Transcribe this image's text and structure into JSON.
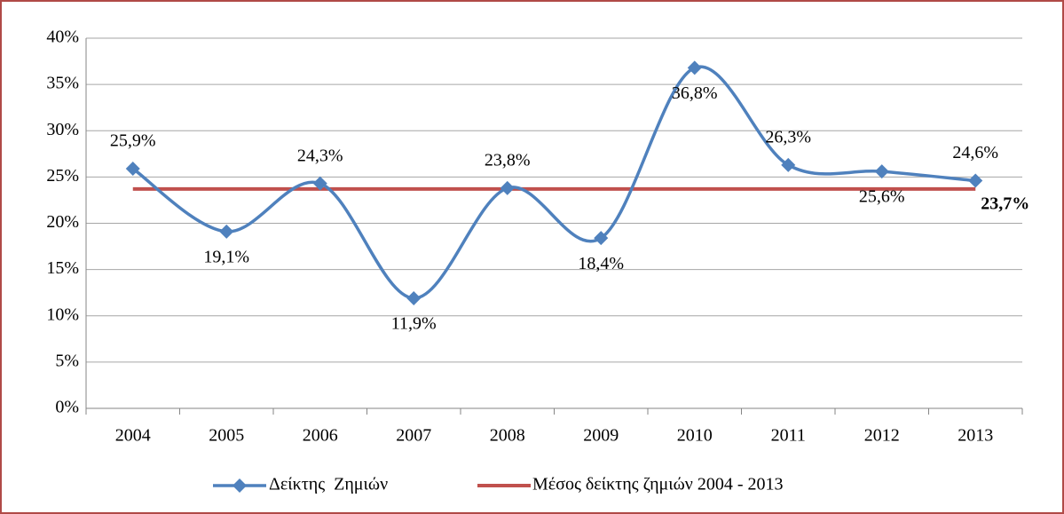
{
  "chart_data": {
    "type": "line",
    "categories": [
      "2004",
      "2005",
      "2006",
      "2007",
      "2008",
      "2009",
      "2010",
      "2011",
      "2012",
      "2013"
    ],
    "series": [
      {
        "name": "Δείκτης  Ζημιών",
        "color": "#4f81bd",
        "values": [
          25.9,
          19.1,
          24.3,
          11.9,
          23.8,
          18.4,
          36.8,
          26.3,
          25.6,
          24.6
        ],
        "value_labels": [
          "25,9%",
          "19,1%",
          "24,3%",
          "11,9%",
          "23,8%",
          "18,4%",
          "36,8%",
          "26,3%",
          "25,6%",
          "24,6%"
        ]
      },
      {
        "name": "Μέσος δείκτης ζημιών 2004 - 2013",
        "color": "#c0504d",
        "values": [
          23.7,
          23.7,
          23.7,
          23.7,
          23.7,
          23.7,
          23.7,
          23.7,
          23.7,
          23.7
        ],
        "value_labels": [
          null,
          null,
          null,
          null,
          null,
          null,
          null,
          null,
          null,
          "23,7%"
        ]
      }
    ],
    "ylim": [
      0,
      40
    ],
    "yticks": [
      {
        "value": 0,
        "label": "0%"
      },
      {
        "value": 5,
        "label": "5%"
      },
      {
        "value": 10,
        "label": "10%"
      },
      {
        "value": 15,
        "label": "15%"
      },
      {
        "value": 20,
        "label": "20%"
      },
      {
        "value": 25,
        "label": "25%"
      },
      {
        "value": 30,
        "label": "30%"
      },
      {
        "value": 35,
        "label": "35%"
      },
      {
        "value": 40,
        "label": "40%"
      }
    ],
    "grid": true,
    "legend": "bottom"
  }
}
